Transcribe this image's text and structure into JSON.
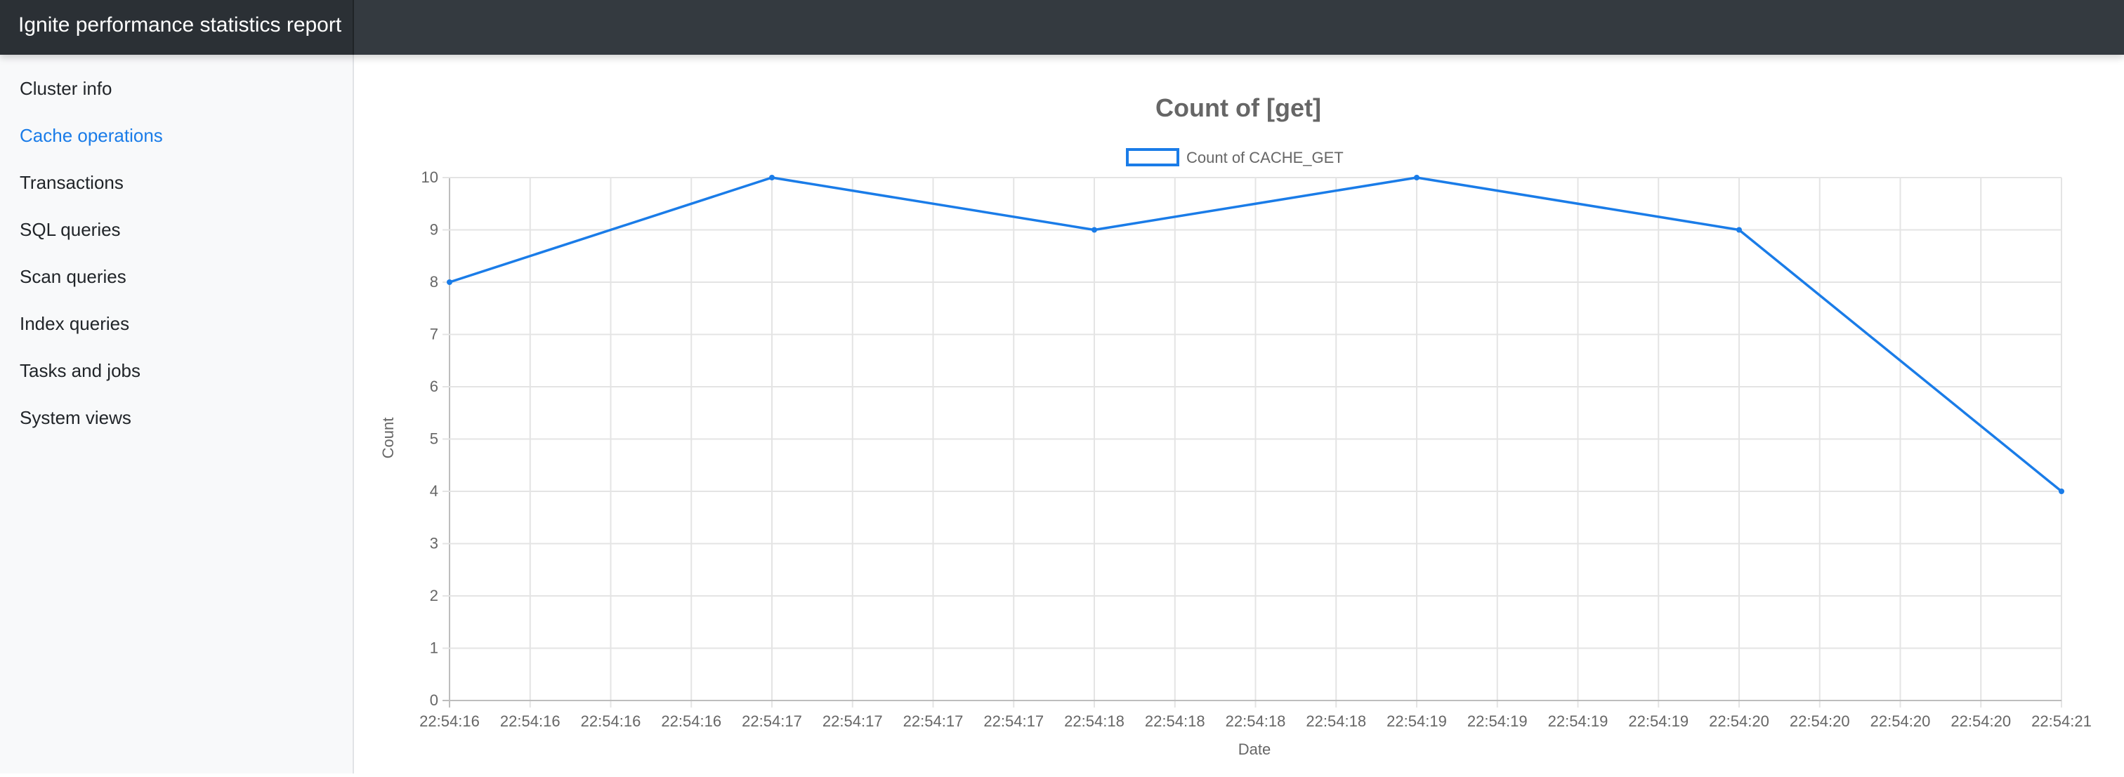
{
  "app": {
    "title": "Ignite performance statistics report"
  },
  "sidebar": {
    "items": [
      {
        "label": "Cluster info",
        "active": false
      },
      {
        "label": "Cache operations",
        "active": true
      },
      {
        "label": "Transactions",
        "active": false
      },
      {
        "label": "SQL queries",
        "active": false
      },
      {
        "label": "Scan queries",
        "active": false
      },
      {
        "label": "Index queries",
        "active": false
      },
      {
        "label": "Tasks and jobs",
        "active": false
      },
      {
        "label": "System views",
        "active": false
      }
    ]
  },
  "colors": {
    "series": "#1a7ce8",
    "accent": "#1a7ce8",
    "topbar": "#343a40"
  },
  "chart_data": {
    "type": "line",
    "title": "Count of [get]",
    "xlabel": "Date",
    "ylabel": "Count",
    "ylim": [
      0,
      10
    ],
    "y_ticks": [
      0,
      1,
      2,
      3,
      4,
      5,
      6,
      7,
      8,
      9,
      10
    ],
    "x_tick_labels": [
      "22:54:16",
      "22:54:16",
      "22:54:16",
      "22:54:16",
      "22:54:17",
      "22:54:17",
      "22:54:17",
      "22:54:17",
      "22:54:18",
      "22:54:18",
      "22:54:18",
      "22:54:18",
      "22:54:19",
      "22:54:19",
      "22:54:19",
      "22:54:19",
      "22:54:20",
      "22:54:20",
      "22:54:20",
      "22:54:20",
      "22:54:21"
    ],
    "grid": true,
    "legend_position": "top",
    "series": [
      {
        "name": "Count of CACHE_GET",
        "points": [
          {
            "x": "22:54:16",
            "y": 8
          },
          {
            "x": "22:54:17",
            "y": 10
          },
          {
            "x": "22:54:18",
            "y": 9
          },
          {
            "x": "22:54:19",
            "y": 10
          },
          {
            "x": "22:54:20",
            "y": 9
          },
          {
            "x": "22:54:21",
            "y": 4
          }
        ]
      }
    ]
  }
}
